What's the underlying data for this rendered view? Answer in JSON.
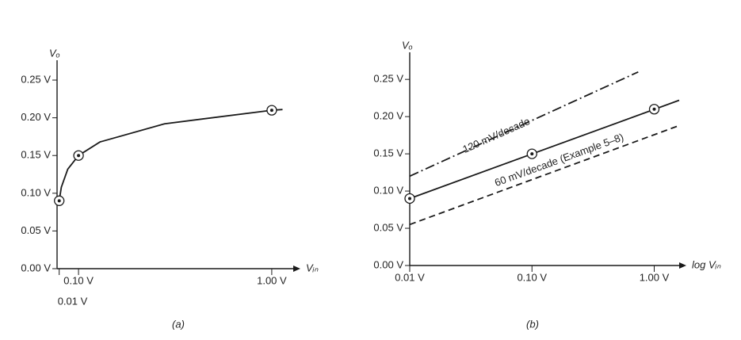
{
  "chart_data": [
    {
      "type": "line",
      "scale": "linear",
      "label": "(a)",
      "y_label": "Vₒ",
      "x_label": "Vᵢₙ",
      "color": "#1a1a1a",
      "x": [
        0.01,
        0.02,
        0.05,
        0.1,
        0.2,
        0.5,
        1.0,
        1.05
      ],
      "values": [
        0.09,
        0.108,
        0.132,
        0.15,
        0.168,
        0.192,
        0.21,
        0.211
      ],
      "points": {
        "x": [
          0.01,
          0.1,
          1.0
        ],
        "values": [
          0.09,
          0.15,
          0.21
        ]
      },
      "xlim": [
        0,
        1.1
      ],
      "ylim": [
        0,
        0.27
      ],
      "xticks": [
        {
          "value": 0.01,
          "label": "0.01 V"
        },
        {
          "value": 0.1,
          "label": "0.10 V"
        },
        {
          "value": 1.0,
          "label": "1.00 V"
        }
      ],
      "yticks": [
        {
          "value": 0,
          "label": "0.00 V"
        },
        {
          "value": 0.05,
          "label": "0.05 V"
        },
        {
          "value": 0.1,
          "label": "0.10 V"
        },
        {
          "value": 0.15,
          "label": "0.15 V"
        },
        {
          "value": 0.2,
          "label": "0.20 V"
        },
        {
          "value": 0.25,
          "label": "0.25 V"
        }
      ]
    },
    {
      "type": "line",
      "scale": "log",
      "label": "(b)",
      "y_label": "Vₒ",
      "x_label": "log Vᵢₙ",
      "color": "#1a1a1a",
      "series": [
        {
          "style": "dashdot",
          "x": [
            0.01,
            0.74
          ],
          "values": [
            0.12,
            0.26
          ]
        },
        {
          "style": "solid",
          "x": [
            0.01,
            1.6
          ],
          "values": [
            0.09,
            0.222
          ]
        },
        {
          "style": "dashed",
          "x": [
            0.01,
            1.6
          ],
          "values": [
            0.055,
            0.188
          ]
        }
      ],
      "points": {
        "x": [
          0.01,
          0.1,
          1.0
        ],
        "values": [
          0.09,
          0.15,
          0.21
        ]
      },
      "annotations": [
        "120 mV/decade",
        "60 mV/decade (Example 5–8)"
      ],
      "xlim": [
        0.01,
        1.6
      ],
      "ylim": [
        0,
        0.28
      ],
      "xticks": [
        {
          "value": 0.01,
          "label": "0.01 V"
        },
        {
          "value": 0.1,
          "label": "0.10 V"
        },
        {
          "value": 1.0,
          "label": "1.00 V"
        }
      ],
      "yticks": [
        {
          "value": 0,
          "label": "0.00 V"
        },
        {
          "value": 0.05,
          "label": "0.05 V"
        },
        {
          "value": 0.1,
          "label": "0.10 V"
        },
        {
          "value": 0.15,
          "label": "0.15 V"
        },
        {
          "value": 0.2,
          "label": "0.20 V"
        },
        {
          "value": 0.25,
          "label": "0.25 V"
        }
      ]
    }
  ]
}
